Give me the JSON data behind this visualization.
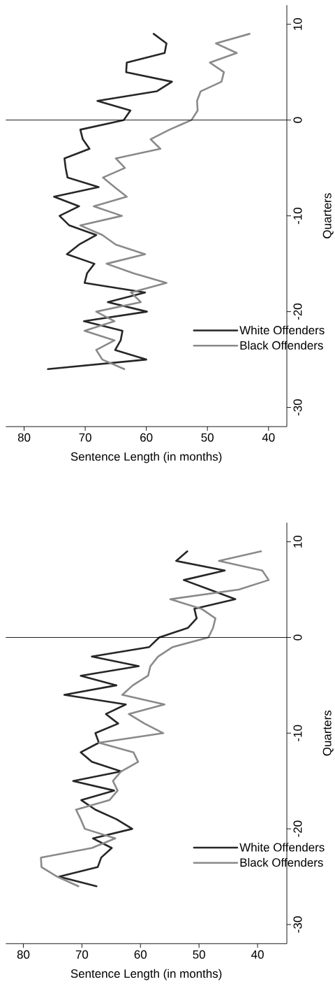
{
  "chart_data": [
    {
      "type": "line",
      "xlabel": "Sentence Length (in months)",
      "ylabel": "Quarters",
      "series": [
        {
          "name": "White Offenders",
          "color": "#262626",
          "x": [
            76.1,
            60.0,
            65.1,
            64.2,
            63.9,
            70.2,
            59.9,
            66.3,
            60.2,
            70.1,
            69.7,
            68.5,
            73.0,
            71.0,
            68.2,
            72.6,
            74.2,
            71.0,
            75.1,
            67.8,
            72.9,
            73.2,
            73.4,
            69.3,
            70.4,
            70.8,
            63.7,
            62.6,
            68.0,
            58.3,
            55.8,
            63.3,
            63.2,
            57.0,
            56.7,
            58.8
          ],
          "values": [
            -26,
            -25,
            -24,
            -23,
            -22,
            -21,
            -20,
            -19,
            -18,
            -17,
            -16,
            -15,
            -14,
            -13,
            -12,
            -11,
            -10,
            -9,
            -8,
            -7,
            -6,
            -5,
            -4,
            -3,
            -2,
            -1,
            0,
            1,
            2,
            3,
            4,
            5,
            6,
            7,
            8,
            9
          ]
        },
        {
          "name": "Black Offenders",
          "color": "#8a8a8a",
          "x": [
            63.6,
            67.2,
            68.2,
            65.2,
            70.1,
            65.2,
            68.2,
            60.9,
            62.5,
            56.7,
            62.1,
            66.5,
            60.2,
            65.0,
            67.2,
            70.8,
            64.0,
            68.6,
            63.2,
            65.2,
            67.1,
            63.5,
            65.0,
            57.7,
            59.3,
            56.2,
            52.6,
            51.6,
            51.7,
            51.1,
            47.7,
            47.3,
            49.6,
            45.2,
            48.6,
            43.1
          ],
          "values": [
            -26,
            -25,
            -24,
            -23,
            -22,
            -21,
            -20,
            -19,
            -18,
            -17,
            -16,
            -15,
            -14,
            -13,
            -12,
            -11,
            -10,
            -9,
            -8,
            -7,
            -6,
            -5,
            -4,
            -3,
            -2,
            -1,
            0,
            1,
            2,
            3,
            4,
            5,
            6,
            7,
            8,
            9
          ]
        }
      ],
      "xlim": [
        83,
        37
      ],
      "ylim": [
        -32,
        12
      ],
      "xticks": [
        40,
        50,
        60,
        70,
        80
      ],
      "yticks": [
        -30,
        -20,
        -10,
        0,
        10
      ],
      "ref_lines": [
        {
          "axis": "y",
          "value": 0
        }
      ],
      "legend": "bottom right"
    },
    {
      "type": "line",
      "xlabel": "Sentence Length (in months)",
      "ylabel": "Quarters",
      "series": [
        {
          "name": "White Offenders",
          "color": "#262626",
          "x": [
            67.5,
            73.9,
            67.3,
            66.7,
            64.9,
            68.1,
            61.4,
            64.1,
            67.7,
            70.1,
            64.5,
            71.5,
            63.3,
            68.3,
            70.2,
            67.1,
            67.7,
            63.8,
            65.9,
            62.5,
            73.0,
            64.1,
            70.2,
            60.3,
            68.3,
            58.5,
            56.8,
            51.9,
            50.4,
            50.8,
            43.8,
            48.2,
            52.6,
            45.6,
            53.9,
            52.0
          ],
          "values": [
            -26,
            -25,
            -24,
            -23,
            -22,
            -21,
            -20,
            -19,
            -18,
            -17,
            -16,
            -15,
            -14,
            -13,
            -12,
            -11,
            -10,
            -9,
            -8,
            -7,
            -6,
            -5,
            -4,
            -3,
            -2,
            -1,
            0,
            1,
            2,
            3,
            4,
            5,
            6,
            7,
            8,
            9
          ]
        },
        {
          "name": "Black Offenders",
          "color": "#8a8a8a",
          "x": [
            70.6,
            74.2,
            76.9,
            77.0,
            68.3,
            64.3,
            69.5,
            70.2,
            71.0,
            65.3,
            63.9,
            64.7,
            63.3,
            60.4,
            61.2,
            67.1,
            56.1,
            59.3,
            62.0,
            55.9,
            63.1,
            61.3,
            58.7,
            58.3,
            57.0,
            54.5,
            48.4,
            47.6,
            47.2,
            49.6,
            54.9,
            43.2,
            38.1,
            39.2,
            46.6,
            39.4
          ],
          "values": [
            -26,
            -25,
            -24,
            -23,
            -22,
            -21,
            -20,
            -19,
            -18,
            -17,
            -16,
            -15,
            -14,
            -13,
            -12,
            -11,
            -10,
            -9,
            -8,
            -7,
            -6,
            -5,
            -4,
            -3,
            -2,
            -1,
            0,
            1,
            2,
            3,
            4,
            5,
            6,
            7,
            8,
            9
          ]
        }
      ],
      "xlim": [
        83,
        35
      ],
      "ylim": [
        -32,
        12
      ],
      "xticks": [
        40,
        50,
        60,
        70,
        80
      ],
      "yticks": [
        -30,
        -20,
        -10,
        0,
        10
      ],
      "ref_lines": [
        {
          "axis": "y",
          "value": 0
        }
      ],
      "legend": "bottom right"
    }
  ]
}
